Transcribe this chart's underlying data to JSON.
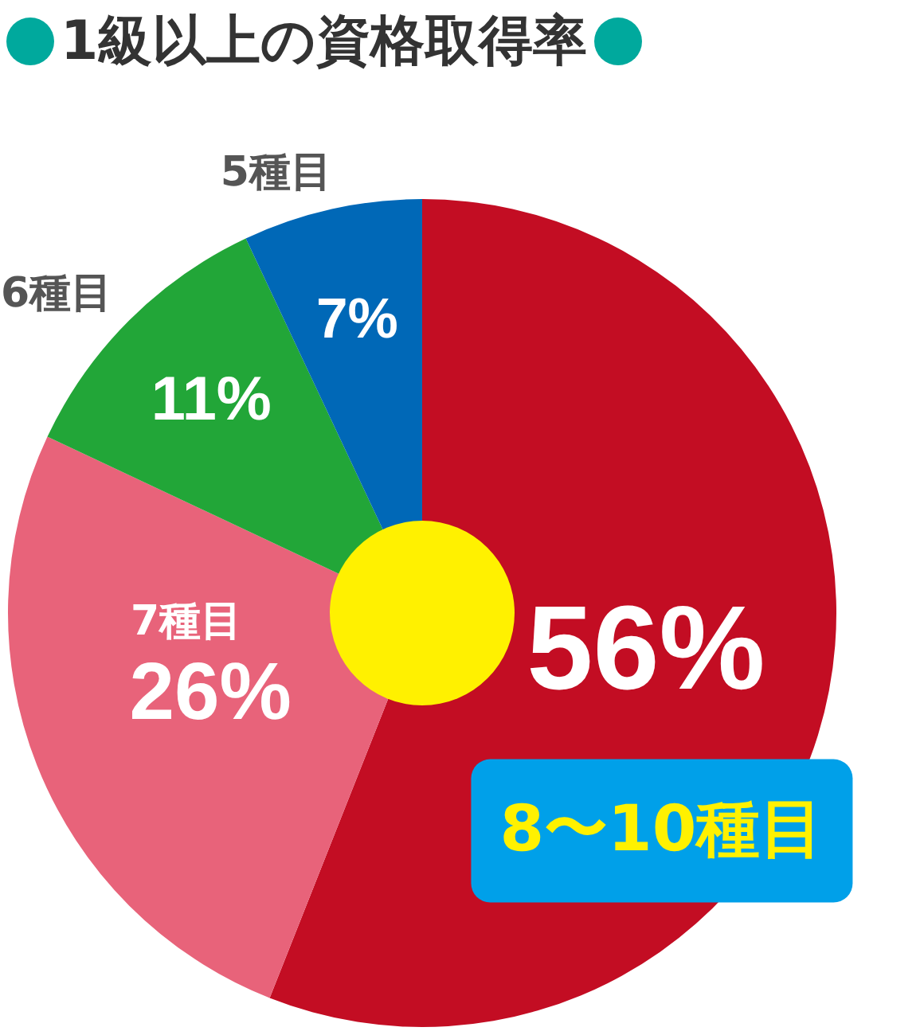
{
  "chart_data": {
    "type": "donut",
    "title": "1級以上の資格取得率",
    "categories": [
      "8〜10種目",
      "7種目",
      "6種目",
      "5種目"
    ],
    "values": [
      56,
      26,
      11,
      7
    ],
    "value_labels": [
      "56%",
      "26%",
      "11%",
      "7%"
    ],
    "colors": [
      "#c30d23",
      "#e8637a",
      "#22a638",
      "#0068b7"
    ],
    "legend": false
  }
}
